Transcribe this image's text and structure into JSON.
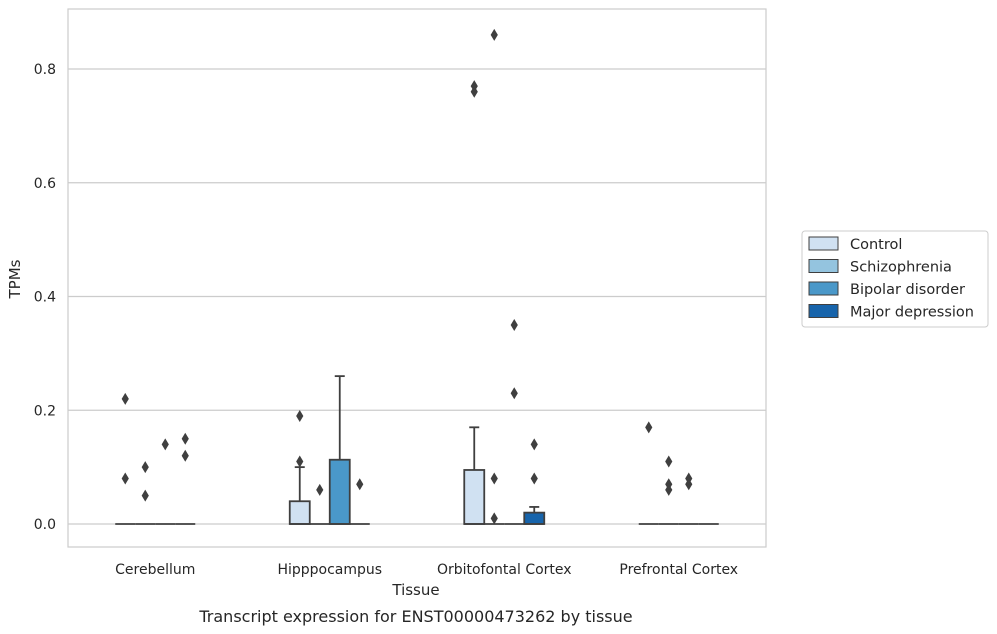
{
  "chart_data": {
    "type": "box",
    "title": "",
    "caption": "Transcript expression for ENST00000473262 by tissue",
    "xlabel": "Tissue",
    "ylabel": "TPMs",
    "ylim": [
      -0.042,
      0.905
    ],
    "yticks": [
      0.0,
      0.2,
      0.4,
      0.6,
      0.8
    ],
    "ytick_labels": [
      "0.0",
      "0.2",
      "0.4",
      "0.6",
      "0.8"
    ],
    "grid": true,
    "legend_position": "right",
    "categories": [
      "Cerebellum",
      "Hipppocampus",
      "Orbitofontal Cortex",
      "Prefrontal Cortex"
    ],
    "series": [
      {
        "name": "Control",
        "color": "#d0e1f2",
        "boxes": [
          {
            "q1": 0,
            "median": 0,
            "q3": 0,
            "whisker_low": 0,
            "whisker_high": 0,
            "outliers": [
              0.08,
              0.22
            ]
          },
          {
            "q1": 0,
            "median": 0,
            "q3": 0.04,
            "whisker_low": 0,
            "whisker_high": 0.1,
            "outliers": [
              0.11,
              0.19
            ]
          },
          {
            "q1": 0,
            "median": 0,
            "q3": 0.095,
            "whisker_low": 0,
            "whisker_high": 0.17,
            "outliers": [
              0.76,
              0.77
            ]
          },
          {
            "q1": 0,
            "median": 0,
            "q3": 0,
            "whisker_low": 0,
            "whisker_high": 0,
            "outliers": [
              0.17
            ]
          }
        ]
      },
      {
        "name": "Schizophrenia",
        "color": "#94c4df",
        "boxes": [
          {
            "q1": 0,
            "median": 0,
            "q3": 0,
            "whisker_low": 0,
            "whisker_high": 0,
            "outliers": [
              0.05,
              0.1
            ]
          },
          {
            "q1": 0,
            "median": 0,
            "q3": 0,
            "whisker_low": 0,
            "whisker_high": 0,
            "outliers": [
              0.06
            ]
          },
          {
            "q1": 0,
            "median": 0,
            "q3": 0,
            "whisker_low": 0,
            "whisker_high": 0,
            "outliers": [
              0.01,
              0.08,
              0.86
            ]
          },
          {
            "q1": 0,
            "median": 0,
            "q3": 0,
            "whisker_low": 0,
            "whisker_high": 0,
            "outliers": [
              0.06,
              0.07,
              0.11
            ]
          }
        ]
      },
      {
        "name": "Bipolar disorder",
        "color": "#4a98c9",
        "boxes": [
          {
            "q1": 0,
            "median": 0,
            "q3": 0,
            "whisker_low": 0,
            "whisker_high": 0,
            "outliers": [
              0.14
            ]
          },
          {
            "q1": 0,
            "median": 0,
            "q3": 0.113,
            "whisker_low": 0,
            "whisker_high": 0.26,
            "outliers": []
          },
          {
            "q1": 0,
            "median": 0,
            "q3": 0,
            "whisker_low": 0,
            "whisker_high": 0,
            "outliers": [
              0.23,
              0.35
            ]
          },
          {
            "q1": 0,
            "median": 0,
            "q3": 0,
            "whisker_low": 0,
            "whisker_high": 0,
            "outliers": [
              0.07,
              0.08
            ]
          }
        ]
      },
      {
        "name": "Major depression",
        "color": "#1764ab",
        "boxes": [
          {
            "q1": 0,
            "median": 0,
            "q3": 0,
            "whisker_low": 0,
            "whisker_high": 0,
            "outliers": [
              0.12,
              0.15
            ]
          },
          {
            "q1": 0,
            "median": 0,
            "q3": 0,
            "whisker_low": 0,
            "whisker_high": 0,
            "outliers": [
              0.07
            ]
          },
          {
            "q1": 0,
            "median": 0,
            "q3": 0.02,
            "whisker_low": 0,
            "whisker_high": 0.03,
            "outliers": [
              0.08,
              0.14
            ]
          },
          {
            "q1": 0,
            "median": 0,
            "q3": 0,
            "whisker_low": 0,
            "whisker_high": 0,
            "outliers": []
          }
        ]
      }
    ]
  }
}
